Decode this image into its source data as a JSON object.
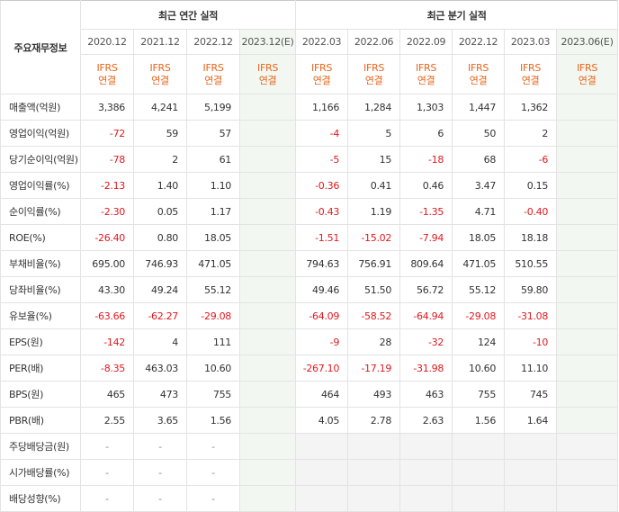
{
  "header": {
    "corner_label": "주요재무정보",
    "annual_group": "최근 연간 실적",
    "quarter_group": "최근 분기 실적",
    "annual_periods": [
      "2020.12",
      "2021.12",
      "2022.12",
      "2023.12(E)"
    ],
    "quarter_periods": [
      "2022.03",
      "2022.06",
      "2022.09",
      "2022.12",
      "2023.03",
      "2023.06(E)"
    ],
    "ifrs_top": "IFRS",
    "ifrs_bottom": "연결"
  },
  "rows": [
    {
      "label": "매출액(억원)",
      "annual": [
        "3,386",
        "4,241",
        "5,199",
        ""
      ],
      "quarter": [
        "1,166",
        "1,284",
        "1,303",
        "1,447",
        "1,362",
        ""
      ]
    },
    {
      "label": "영업이익(억원)",
      "annual": [
        "-72",
        "59",
        "57",
        ""
      ],
      "quarter": [
        "-4",
        "5",
        "6",
        "50",
        "2",
        ""
      ]
    },
    {
      "label": "당기순이익(억원)",
      "annual": [
        "-78",
        "2",
        "61",
        ""
      ],
      "quarter": [
        "-5",
        "15",
        "-18",
        "68",
        "-6",
        ""
      ]
    },
    {
      "label": "영업이익률(%)",
      "annual": [
        "-2.13",
        "1.40",
        "1.10",
        ""
      ],
      "quarter": [
        "-0.36",
        "0.41",
        "0.46",
        "3.47",
        "0.15",
        ""
      ]
    },
    {
      "label": "순이익률(%)",
      "annual": [
        "-2.30",
        "0.05",
        "1.17",
        ""
      ],
      "quarter": [
        "-0.43",
        "1.19",
        "-1.35",
        "4.71",
        "-0.40",
        ""
      ]
    },
    {
      "label": "ROE(%)",
      "annual": [
        "-26.40",
        "0.80",
        "18.05",
        ""
      ],
      "quarter": [
        "-1.51",
        "-15.02",
        "-7.94",
        "18.05",
        "18.18",
        ""
      ]
    },
    {
      "label": "부채비율(%)",
      "annual": [
        "695.00",
        "746.93",
        "471.05",
        ""
      ],
      "quarter": [
        "794.63",
        "756.91",
        "809.64",
        "471.05",
        "510.55",
        ""
      ]
    },
    {
      "label": "당좌비율(%)",
      "annual": [
        "43.30",
        "49.24",
        "55.12",
        ""
      ],
      "quarter": [
        "49.46",
        "51.50",
        "56.72",
        "55.12",
        "59.80",
        ""
      ]
    },
    {
      "label": "유보율(%)",
      "annual": [
        "-63.66",
        "-62.27",
        "-29.08",
        ""
      ],
      "quarter": [
        "-64.09",
        "-58.52",
        "-64.94",
        "-29.08",
        "-31.08",
        ""
      ]
    },
    {
      "label": "EPS(원)",
      "annual": [
        "-142",
        "4",
        "111",
        ""
      ],
      "quarter": [
        "-9",
        "28",
        "-32",
        "124",
        "-10",
        ""
      ]
    },
    {
      "label": "PER(배)",
      "annual": [
        "-8.35",
        "463.03",
        "10.60",
        ""
      ],
      "quarter": [
        "-267.10",
        "-17.19",
        "-31.98",
        "10.60",
        "11.10",
        ""
      ]
    },
    {
      "label": "BPS(원)",
      "annual": [
        "465",
        "473",
        "755",
        ""
      ],
      "quarter": [
        "464",
        "493",
        "463",
        "755",
        "745",
        ""
      ]
    },
    {
      "label": "PBR(배)",
      "annual": [
        "2.55",
        "3.65",
        "1.56",
        ""
      ],
      "quarter": [
        "4.05",
        "2.78",
        "2.63",
        "1.56",
        "1.64",
        ""
      ]
    },
    {
      "label": "주당배당금(원)",
      "annual": [
        "-",
        "-",
        "-",
        ""
      ],
      "quarter": [
        "",
        "",
        "",
        "",
        "",
        ""
      ]
    },
    {
      "label": "시가배당률(%)",
      "annual": [
        "-",
        "-",
        "-",
        ""
      ],
      "quarter": [
        "",
        "",
        "",
        "",
        "",
        ""
      ]
    },
    {
      "label": "배당성향(%)",
      "annual": [
        "-",
        "-",
        "-",
        ""
      ],
      "quarter": [
        "",
        "",
        "",
        "",
        "",
        ""
      ]
    }
  ],
  "colors": {
    "negative": "#e0191e",
    "ifrs": "#e8641b",
    "estimate_bg": "#f2f8f1",
    "empty_bg": "#f4f4f4"
  }
}
